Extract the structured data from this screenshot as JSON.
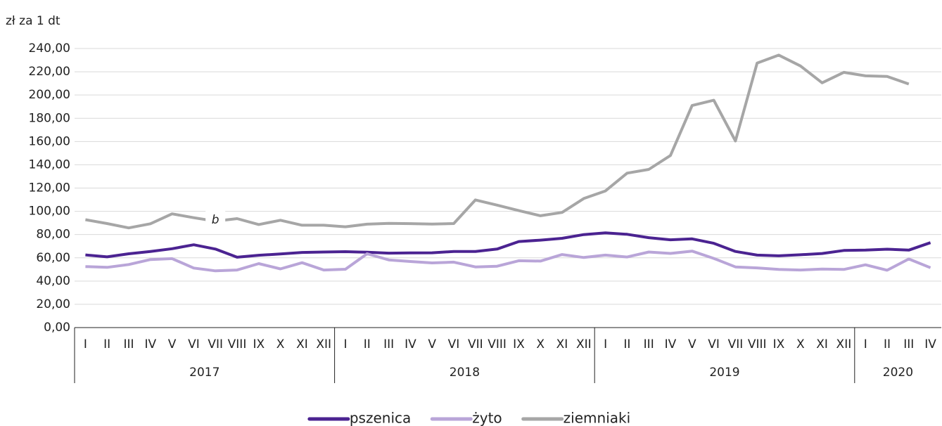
{
  "chart_data": {
    "type": "line",
    "y_unit_label": "zł za 1 dt",
    "categories": [
      "I",
      "II",
      "III",
      "IV",
      "V",
      "VI",
      "VII",
      "VIII",
      "IX",
      "X",
      "XI",
      "XII",
      "I",
      "II",
      "III",
      "IV",
      "V",
      "VI",
      "VII",
      "VIII",
      "IX",
      "X",
      "XI",
      "XII",
      "I",
      "II",
      "III",
      "IV",
      "V",
      "VI",
      "VII",
      "VIII",
      "IX",
      "X",
      "XI",
      "XII",
      "I",
      "II",
      "III",
      "IV"
    ],
    "groups": [
      "2017",
      "2018",
      "2019",
      "2020"
    ],
    "series": [
      {
        "name": "pszenica",
        "color": "#4b2391",
        "values": [
          62.5,
          60.8,
          63.5,
          65.5,
          67.8,
          71.2,
          67.5,
          60.5,
          62.2,
          63.3,
          64.6,
          65.0,
          65.3,
          64.8,
          64.0,
          64.2,
          64.3,
          65.5,
          65.5,
          67.5,
          74.0,
          75.2,
          76.8,
          80.0,
          81.5,
          80.2,
          77.3,
          75.5,
          76.3,
          72.5,
          65.5,
          62.3,
          61.7,
          62.6,
          63.7,
          66.3,
          66.6,
          67.4,
          66.6,
          73.0
        ]
      },
      {
        "name": "żyto",
        "color": "#b9a5d8",
        "values": [
          52.5,
          51.8,
          54.2,
          58.5,
          59.3,
          51.2,
          48.8,
          49.5,
          55.0,
          50.5,
          55.8,
          49.5,
          50.2,
          63.5,
          58.2,
          56.8,
          55.6,
          56.3,
          52.2,
          52.8,
          57.5,
          57.2,
          62.8,
          60.3,
          62.3,
          60.7,
          65.0,
          63.8,
          65.8,
          59.5,
          52.2,
          51.3,
          50.0,
          49.5,
          50.3,
          50.0,
          54.0,
          49.3,
          59.0,
          51.5
        ]
      },
      {
        "name": "ziemniaki",
        "color": "#a6a6a6",
        "values": [
          92.8,
          89.5,
          85.7,
          89.3,
          97.8,
          94.5,
          91.5,
          93.7,
          88.6,
          92.3,
          88.0,
          88.0,
          86.7,
          88.9,
          89.6,
          89.4,
          89.0,
          89.5,
          109.8,
          105.3,
          100.6,
          96.2,
          99.0,
          111.0,
          117.5,
          132.8,
          136.0,
          148.0,
          191.0,
          195.5,
          160.5,
          227.5,
          234.3,
          225.0,
          210.5,
          219.5,
          216.5,
          216.0,
          209.5,
          null
        ]
      }
    ],
    "annotations": [
      {
        "text": "b",
        "category": 6
      }
    ],
    "ylim": [
      0,
      240
    ],
    "yticks": [
      {
        "value": 0,
        "label": "0,00"
      },
      {
        "value": 20,
        "label": "20,00"
      },
      {
        "value": 40,
        "label": "40,00"
      },
      {
        "value": 60,
        "label": "60,00"
      },
      {
        "value": 80,
        "label": "80,00"
      },
      {
        "value": 100,
        "label": "100,00"
      },
      {
        "value": 120,
        "label": "120,00"
      },
      {
        "value": 140,
        "label": "140,00"
      },
      {
        "value": 160,
        "label": "160,00"
      },
      {
        "value": 180,
        "label": "180,00"
      },
      {
        "value": 200,
        "label": "200,00"
      },
      {
        "value": 220,
        "label": "220,00"
      },
      {
        "value": 240,
        "label": "240,00"
      }
    ],
    "grid": true,
    "legend": "bottom"
  }
}
